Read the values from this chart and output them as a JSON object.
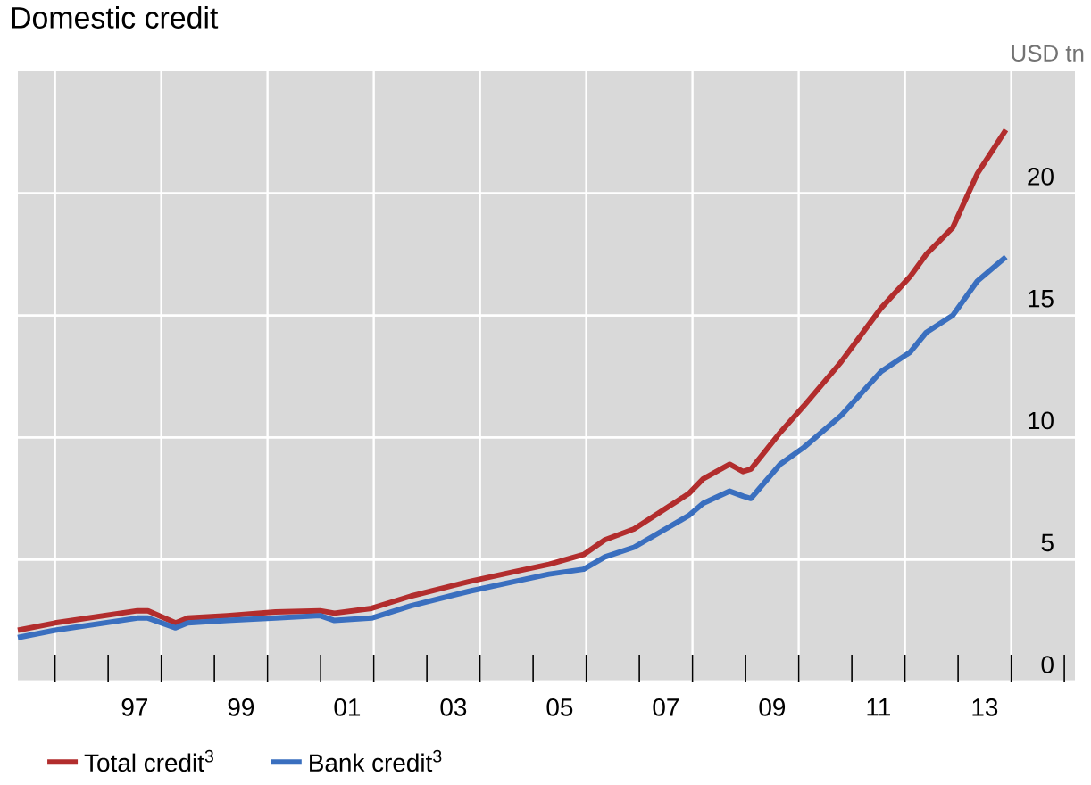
{
  "chart_data": {
    "type": "line",
    "title": "Domestic credit",
    "ylabel": "USD tn",
    "x": [
      1994.8,
      1995.5,
      1997.05,
      1997.25,
      1997.77,
      1998.0,
      1998.74,
      1999.65,
      2000.49,
      2000.76,
      2001.46,
      2002.2,
      2003.3,
      2004.15,
      2004.8,
      2005.45,
      2005.85,
      2006.4,
      2007.43,
      2007.7,
      2008.2,
      2008.45,
      2008.6,
      2009.15,
      2009.6,
      2010.3,
      2011.05,
      2011.6,
      2011.9,
      2012.4,
      2012.86,
      2013.4
    ],
    "series": [
      {
        "name": "Total credit$^{3}$",
        "color": "#b22d2d",
        "values": [
          2.1,
          2.4,
          2.9,
          2.9,
          2.4,
          2.6,
          2.7,
          2.85,
          2.9,
          2.8,
          3.0,
          3.5,
          4.1,
          4.5,
          4.8,
          5.2,
          5.8,
          6.25,
          7.7,
          8.3,
          8.9,
          8.6,
          8.7,
          10.2,
          11.3,
          13.1,
          15.3,
          16.6,
          17.5,
          18.6,
          20.8,
          22.6
        ]
      },
      {
        "name": "Bank credit$^{3}$",
        "color": "#3a6fbf",
        "values": [
          1.8,
          2.1,
          2.6,
          2.6,
          2.2,
          2.4,
          2.5,
          2.6,
          2.7,
          2.5,
          2.6,
          3.1,
          3.7,
          4.1,
          4.4,
          4.6,
          5.1,
          5.5,
          6.8,
          7.3,
          7.8,
          7.6,
          7.5,
          8.9,
          9.6,
          10.9,
          12.7,
          13.5,
          14.3,
          15.0,
          16.4,
          17.4
        ]
      }
    ],
    "xlim": [
      1994.8,
      2014.7
    ],
    "xticks": [
      {
        "value": 1995.5,
        "label": null
      },
      {
        "value": 1996.5,
        "label": null
      },
      {
        "value": 1997,
        "label": "97"
      },
      {
        "value": 1997.5,
        "label": null
      },
      {
        "value": 1998.5,
        "label": null
      },
      {
        "value": 1999,
        "label": "99"
      },
      {
        "value": 1999.5,
        "label": null
      },
      {
        "value": 2000.5,
        "label": null
      },
      {
        "value": 2001,
        "label": "01"
      },
      {
        "value": 2001.5,
        "label": null
      },
      {
        "value": 2002.5,
        "label": null
      },
      {
        "value": 2003,
        "label": "03"
      },
      {
        "value": 2003.5,
        "label": null
      },
      {
        "value": 2004.5,
        "label": null
      },
      {
        "value": 2005,
        "label": "05"
      },
      {
        "value": 2005.5,
        "label": null
      },
      {
        "value": 2006.5,
        "label": null
      },
      {
        "value": 2007,
        "label": "07"
      },
      {
        "value": 2007.5,
        "label": null
      },
      {
        "value": 2008.5,
        "label": null
      },
      {
        "value": 2009,
        "label": "09"
      },
      {
        "value": 2009.5,
        "label": null
      },
      {
        "value": 2010.5,
        "label": null
      },
      {
        "value": 2011,
        "label": "11"
      },
      {
        "value": 2011.5,
        "label": null
      },
      {
        "value": 2012.5,
        "label": null
      },
      {
        "value": 2013,
        "label": "13"
      },
      {
        "value": 2013.5,
        "label": null
      },
      {
        "value": 2014.5,
        "label": null
      }
    ],
    "ylim": [
      0,
      25
    ],
    "yticks": [
      0,
      5,
      10,
      15,
      20
    ],
    "grid": true,
    "legend": "bottom left",
    "marker": "none",
    "line_style": "solid"
  }
}
